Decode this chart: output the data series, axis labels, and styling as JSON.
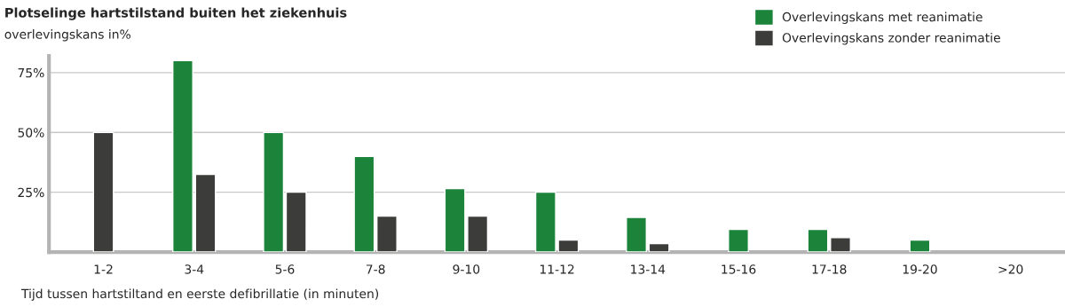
{
  "chart_data": {
    "type": "bar",
    "title": "Plotselinge hartstilstand buiten het ziekenhuis",
    "subtitle": "overlevingskans in%",
    "xlabel": "Tijd tussen hartstiltand en eerste defibrillatie (in minuten)",
    "categories": [
      "1-2",
      "3-4",
      "5-6",
      "7-8",
      "9-10",
      "11-12",
      "13-14",
      "15-16",
      "17-18",
      "19-20",
      ">20"
    ],
    "series": [
      {
        "name": "Overlevingskans met reanimatie",
        "color": "#1b843a",
        "values": [
          null,
          80,
          50,
          40,
          26.5,
          25,
          14.5,
          9.5,
          9.5,
          5,
          null
        ]
      },
      {
        "name": "Overlevingskans zonder reanimatie",
        "color": "#3c3c3b",
        "values": [
          50,
          32.5,
          25,
          15,
          15,
          5,
          3.5,
          null,
          6,
          null,
          null
        ]
      }
    ],
    "ylim": [
      0,
      82
    ],
    "yticks": [
      {
        "value": 25,
        "label": "25%"
      },
      {
        "value": 50,
        "label": "50%"
      },
      {
        "value": 75,
        "label": "75%"
      }
    ],
    "grid": "y",
    "legend": "top right"
  }
}
